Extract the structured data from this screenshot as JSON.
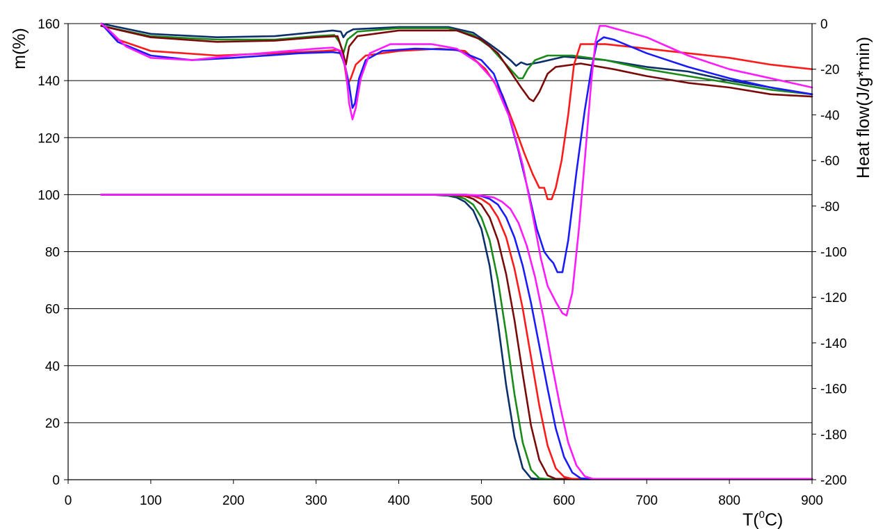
{
  "chart_data": {
    "type": "line",
    "title": "",
    "xlabel": "T(",
    "xlabel_sup": "0",
    "xlabel_end": "C)",
    "ylabel_left": "m(%)",
    "ylabel_right": "Heat flow(J/g*min)",
    "xlim": [
      0,
      900
    ],
    "ylim_left": [
      0,
      160
    ],
    "ylim_right": [
      -200,
      0
    ],
    "grid": "horizontal",
    "legend": "none",
    "x_ticks": [
      "0",
      "100",
      "200",
      "300",
      "400",
      "500",
      "600",
      "700",
      "800",
      "900"
    ],
    "y_left_ticks": [
      "0",
      "20",
      "40",
      "60",
      "80",
      "100",
      "120",
      "140",
      "160"
    ],
    "y_right_ticks": [
      "0",
      "-20",
      "-40",
      "-60",
      "-80",
      "-100",
      "-120",
      "-140",
      "-160",
      "-180",
      "-200"
    ],
    "series": [
      {
        "kind": "heat_flow",
        "axis": "right",
        "color": "#0b2f6b",
        "points": [
          [
            40,
            0
          ],
          [
            100,
            -4.5
          ],
          [
            180,
            -6
          ],
          [
            250,
            -5.5
          ],
          [
            320,
            -3
          ],
          [
            330,
            -3.5
          ],
          [
            333,
            -6
          ],
          [
            337,
            -4
          ],
          [
            345,
            -2.5
          ],
          [
            400,
            -1.5
          ],
          [
            460,
            -1.5
          ],
          [
            490,
            -4
          ],
          [
            510,
            -9
          ],
          [
            525,
            -13
          ],
          [
            535,
            -16
          ],
          [
            542,
            -18.5
          ],
          [
            548,
            -17
          ],
          [
            555,
            -18
          ],
          [
            570,
            -17
          ],
          [
            600,
            -14.5
          ],
          [
            650,
            -16
          ],
          [
            700,
            -19
          ],
          [
            750,
            -21
          ],
          [
            800,
            -25
          ],
          [
            850,
            -28
          ],
          [
            900,
            -31
          ]
        ]
      },
      {
        "kind": "heat_flow",
        "axis": "right",
        "color": "#1a8a1a",
        "points": [
          [
            40,
            -1
          ],
          [
            100,
            -5.5
          ],
          [
            180,
            -7
          ],
          [
            250,
            -7
          ],
          [
            300,
            -5.5
          ],
          [
            322,
            -5
          ],
          [
            328,
            -8
          ],
          [
            333,
            -13
          ],
          [
            338,
            -7
          ],
          [
            350,
            -3.5
          ],
          [
            400,
            -2
          ],
          [
            460,
            -2
          ],
          [
            490,
            -5
          ],
          [
            510,
            -10
          ],
          [
            525,
            -16
          ],
          [
            535,
            -20
          ],
          [
            545,
            -24
          ],
          [
            550,
            -24
          ],
          [
            556,
            -20
          ],
          [
            565,
            -16
          ],
          [
            580,
            -14
          ],
          [
            610,
            -14
          ],
          [
            650,
            -16
          ],
          [
            700,
            -20
          ],
          [
            750,
            -23
          ],
          [
            800,
            -26
          ],
          [
            850,
            -29
          ],
          [
            900,
            -31
          ]
        ]
      },
      {
        "kind": "heat_flow",
        "axis": "right",
        "color": "#7a0a0a",
        "points": [
          [
            40,
            -1
          ],
          [
            100,
            -6
          ],
          [
            180,
            -8
          ],
          [
            250,
            -7.5
          ],
          [
            300,
            -6
          ],
          [
            326,
            -5.5
          ],
          [
            332,
            -12
          ],
          [
            336,
            -18
          ],
          [
            340,
            -10
          ],
          [
            350,
            -5.5
          ],
          [
            400,
            -3
          ],
          [
            470,
            -3
          ],
          [
            500,
            -7
          ],
          [
            520,
            -13
          ],
          [
            535,
            -21
          ],
          [
            548,
            -28
          ],
          [
            558,
            -33
          ],
          [
            563,
            -34
          ],
          [
            570,
            -30
          ],
          [
            580,
            -22
          ],
          [
            590,
            -19
          ],
          [
            620,
            -17.5
          ],
          [
            660,
            -20
          ],
          [
            700,
            -23
          ],
          [
            750,
            -26
          ],
          [
            800,
            -28
          ],
          [
            850,
            -31
          ],
          [
            900,
            -32
          ]
        ]
      },
      {
        "kind": "heat_flow",
        "axis": "right",
        "color": "#ff1a1a",
        "points": [
          [
            40,
            0
          ],
          [
            60,
            -7
          ],
          [
            100,
            -12
          ],
          [
            180,
            -14
          ],
          [
            250,
            -13
          ],
          [
            310,
            -12
          ],
          [
            327,
            -11.5
          ],
          [
            334,
            -17
          ],
          [
            338,
            -27
          ],
          [
            342,
            -24
          ],
          [
            348,
            -18
          ],
          [
            360,
            -14
          ],
          [
            400,
            -12
          ],
          [
            450,
            -11
          ],
          [
            480,
            -12
          ],
          [
            505,
            -20
          ],
          [
            525,
            -31
          ],
          [
            540,
            -45
          ],
          [
            552,
            -57
          ],
          [
            562,
            -66
          ],
          [
            570,
            -72
          ],
          [
            576,
            -72
          ],
          [
            580,
            -77
          ],
          [
            585,
            -77
          ],
          [
            590,
            -72
          ],
          [
            597,
            -60
          ],
          [
            605,
            -40
          ],
          [
            612,
            -18
          ],
          [
            620,
            -9
          ],
          [
            650,
            -9
          ],
          [
            700,
            -11
          ],
          [
            750,
            -13
          ],
          [
            800,
            -15
          ],
          [
            850,
            -18
          ],
          [
            900,
            -20
          ]
        ]
      },
      {
        "kind": "heat_flow",
        "axis": "right",
        "color": "#1a1aff",
        "points": [
          [
            40,
            0
          ],
          [
            60,
            -8
          ],
          [
            100,
            -14
          ],
          [
            150,
            -16
          ],
          [
            200,
            -15
          ],
          [
            280,
            -13
          ],
          [
            320,
            -12.5
          ],
          [
            330,
            -13
          ],
          [
            336,
            -20
          ],
          [
            340,
            -27
          ],
          [
            344,
            -37
          ],
          [
            347,
            -35
          ],
          [
            352,
            -24
          ],
          [
            360,
            -16
          ],
          [
            380,
            -12
          ],
          [
            420,
            -11
          ],
          [
            470,
            -11.5
          ],
          [
            500,
            -16
          ],
          [
            515,
            -22
          ],
          [
            530,
            -36
          ],
          [
            545,
            -56
          ],
          [
            557,
            -74
          ],
          [
            567,
            -90
          ],
          [
            576,
            -100
          ],
          [
            582,
            -103
          ],
          [
            587,
            -105
          ],
          [
            592,
            -109
          ],
          [
            598,
            -109
          ],
          [
            605,
            -95
          ],
          [
            615,
            -65
          ],
          [
            625,
            -38
          ],
          [
            633,
            -20
          ],
          [
            640,
            -8
          ],
          [
            648,
            -6
          ],
          [
            660,
            -7
          ],
          [
            700,
            -13
          ],
          [
            750,
            -19
          ],
          [
            800,
            -24
          ],
          [
            850,
            -28
          ],
          [
            900,
            -31
          ]
        ]
      },
      {
        "kind": "heat_flow",
        "axis": "right",
        "color": "#ff1aff",
        "points": [
          [
            40,
            0
          ],
          [
            50,
            -3
          ],
          [
            70,
            -10
          ],
          [
            100,
            -15
          ],
          [
            150,
            -16
          ],
          [
            200,
            -14
          ],
          [
            250,
            -12.5
          ],
          [
            300,
            -11
          ],
          [
            320,
            -10.5
          ],
          [
            330,
            -12
          ],
          [
            336,
            -20
          ],
          [
            340,
            -35
          ],
          [
            344,
            -42
          ],
          [
            348,
            -37
          ],
          [
            354,
            -24
          ],
          [
            365,
            -13
          ],
          [
            390,
            -9
          ],
          [
            440,
            -9
          ],
          [
            470,
            -11
          ],
          [
            495,
            -17
          ],
          [
            515,
            -25
          ],
          [
            535,
            -42
          ],
          [
            550,
            -62
          ],
          [
            562,
            -84
          ],
          [
            572,
            -103
          ],
          [
            580,
            -115
          ],
          [
            590,
            -122
          ],
          [
            598,
            -127
          ],
          [
            603,
            -128
          ],
          [
            610,
            -118
          ],
          [
            618,
            -90
          ],
          [
            625,
            -60
          ],
          [
            633,
            -25
          ],
          [
            638,
            -8
          ],
          [
            643,
            -1
          ],
          [
            650,
            -1
          ],
          [
            700,
            -6
          ],
          [
            750,
            -14
          ],
          [
            800,
            -20
          ],
          [
            850,
            -24
          ],
          [
            900,
            -28
          ]
        ]
      },
      {
        "kind": "mass",
        "axis": "left",
        "color": "#0b2f6b",
        "points": [
          [
            40,
            100
          ],
          [
            300,
            100
          ],
          [
            440,
            100
          ],
          [
            460,
            99.6
          ],
          [
            470,
            99
          ],
          [
            480,
            97.5
          ],
          [
            490,
            94.5
          ],
          [
            500,
            88
          ],
          [
            510,
            75
          ],
          [
            520,
            55
          ],
          [
            530,
            33
          ],
          [
            540,
            15
          ],
          [
            550,
            4
          ],
          [
            560,
            0.5
          ],
          [
            570,
            0.2
          ],
          [
            900,
            0.2
          ]
        ]
      },
      {
        "kind": "mass",
        "axis": "left",
        "color": "#1a8a1a",
        "points": [
          [
            40,
            100
          ],
          [
            300,
            100
          ],
          [
            450,
            100
          ],
          [
            470,
            99.5
          ],
          [
            480,
            98.5
          ],
          [
            490,
            96.5
          ],
          [
            500,
            92
          ],
          [
            510,
            84
          ],
          [
            520,
            70
          ],
          [
            530,
            51
          ],
          [
            540,
            30
          ],
          [
            550,
            13
          ],
          [
            560,
            3.5
          ],
          [
            570,
            0.5
          ],
          [
            580,
            0.2
          ],
          [
            900,
            0.2
          ]
        ]
      },
      {
        "kind": "mass",
        "axis": "left",
        "color": "#7a0a0a",
        "points": [
          [
            40,
            100
          ],
          [
            300,
            100
          ],
          [
            460,
            100
          ],
          [
            480,
            99.5
          ],
          [
            490,
            98.5
          ],
          [
            500,
            96.5
          ],
          [
            510,
            92
          ],
          [
            520,
            84
          ],
          [
            530,
            72
          ],
          [
            540,
            56
          ],
          [
            550,
            37
          ],
          [
            560,
            19
          ],
          [
            570,
            7
          ],
          [
            580,
            1.5
          ],
          [
            590,
            0.3
          ],
          [
            900,
            0.3
          ]
        ]
      },
      {
        "kind": "mass",
        "axis": "left",
        "color": "#ff1a1a",
        "points": [
          [
            40,
            100
          ],
          [
            300,
            100
          ],
          [
            470,
            100
          ],
          [
            490,
            99.5
          ],
          [
            500,
            98.5
          ],
          [
            510,
            96.5
          ],
          [
            520,
            92
          ],
          [
            530,
            85
          ],
          [
            540,
            74
          ],
          [
            550,
            60
          ],
          [
            560,
            43
          ],
          [
            570,
            26
          ],
          [
            580,
            12
          ],
          [
            590,
            4
          ],
          [
            600,
            1
          ],
          [
            610,
            0.3
          ],
          [
            900,
            0.3
          ]
        ]
      },
      {
        "kind": "mass",
        "axis": "left",
        "color": "#1a1aff",
        "points": [
          [
            40,
            100
          ],
          [
            300,
            100
          ],
          [
            480,
            100
          ],
          [
            500,
            99.5
          ],
          [
            510,
            98.5
          ],
          [
            520,
            96.5
          ],
          [
            530,
            92
          ],
          [
            540,
            85
          ],
          [
            550,
            75
          ],
          [
            560,
            62
          ],
          [
            570,
            47
          ],
          [
            580,
            32
          ],
          [
            590,
            18
          ],
          [
            600,
            8
          ],
          [
            610,
            2.5
          ],
          [
            620,
            0.5
          ],
          [
            630,
            0.3
          ],
          [
            900,
            0.3
          ]
        ]
      },
      {
        "kind": "mass",
        "axis": "left",
        "color": "#ff1aff",
        "points": [
          [
            40,
            100
          ],
          [
            300,
            100
          ],
          [
            480,
            100
          ],
          [
            500,
            99.7
          ],
          [
            515,
            99
          ],
          [
            525,
            97.5
          ],
          [
            535,
            95
          ],
          [
            545,
            90
          ],
          [
            555,
            82
          ],
          [
            565,
            71
          ],
          [
            575,
            57
          ],
          [
            585,
            41
          ],
          [
            595,
            26
          ],
          [
            605,
            13
          ],
          [
            615,
            5
          ],
          [
            625,
            1.2
          ],
          [
            635,
            0.3
          ],
          [
            900,
            0.3
          ]
        ]
      }
    ]
  }
}
